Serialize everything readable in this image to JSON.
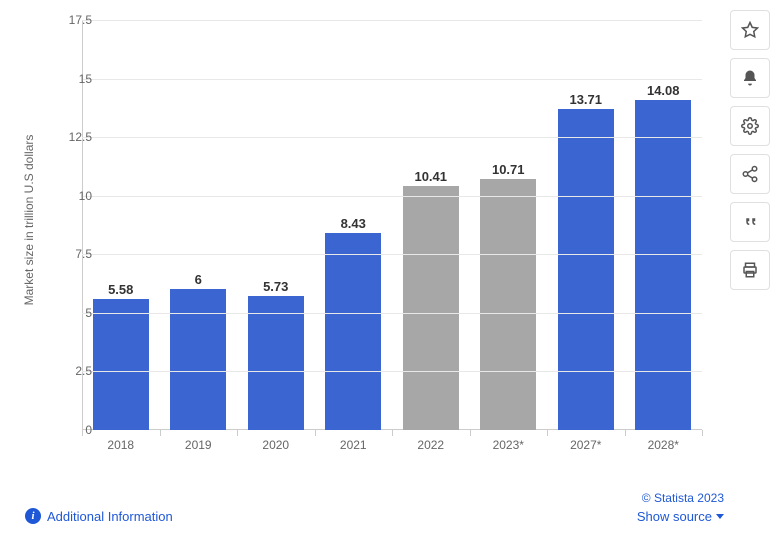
{
  "chart": {
    "type": "bar",
    "y_axis_title": "Market size in trillion U.S dollars",
    "ylim": [
      0,
      17.5
    ],
    "ytick_step": 2.5,
    "yticks": [
      0,
      2.5,
      5,
      7.5,
      10,
      12.5,
      15,
      17.5
    ],
    "grid_color": "#e8e8e8",
    "axis_color": "#cccccc",
    "background_color": "#ffffff",
    "label_fontsize": 12,
    "value_fontsize": 13,
    "bar_width_ratio": 0.72,
    "categories": [
      "2018",
      "2019",
      "2020",
      "2021",
      "2022",
      "2023*",
      "2027*",
      "2028*"
    ],
    "values": [
      5.58,
      6,
      5.73,
      8.43,
      10.41,
      10.71,
      13.71,
      14.08
    ],
    "value_labels": [
      "5.58",
      "6",
      "5.73",
      "8.43",
      "10.41",
      "10.71",
      "13.71",
      "14.08"
    ],
    "bar_colors": [
      "#3b66d1",
      "#3b66d1",
      "#3b66d1",
      "#3b66d1",
      "#a7a7a7",
      "#a7a7a7",
      "#3b66d1",
      "#3b66d1"
    ]
  },
  "toolbar": {
    "items": [
      {
        "name": "star-icon"
      },
      {
        "name": "bell-icon"
      },
      {
        "name": "gear-icon"
      },
      {
        "name": "share-icon"
      },
      {
        "name": "quote-icon"
      },
      {
        "name": "print-icon"
      }
    ]
  },
  "footer": {
    "additional_info_label": "Additional Information",
    "copyright": "© Statista 2023",
    "show_source_label": "Show source",
    "link_color": "#1f58d6"
  }
}
